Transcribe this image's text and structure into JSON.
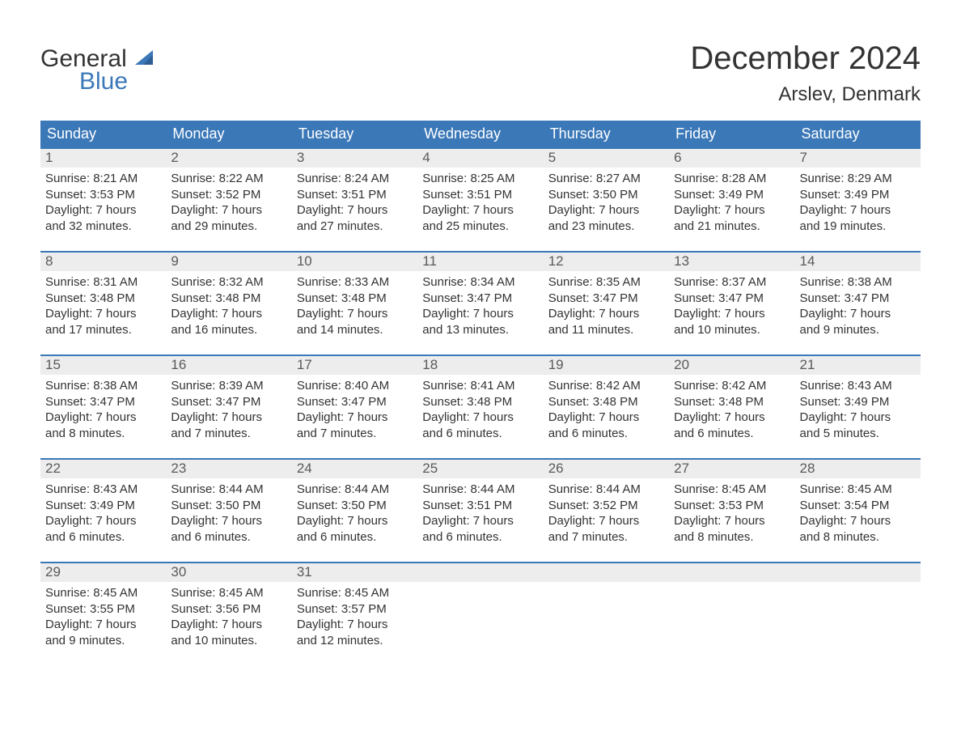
{
  "brand": {
    "name_part1": "General",
    "name_part2": "Blue",
    "text_color": "#333333",
    "accent_color": "#3b78b8"
  },
  "title": {
    "month_year": "December 2024",
    "location": "Arslev, Denmark",
    "month_fontsize": 40,
    "location_fontsize": 24
  },
  "colors": {
    "header_bg": "#3b78b8",
    "header_text": "#ffffff",
    "daynum_bg": "#ededed",
    "daynum_text": "#5a5a5a",
    "row_top_border": "#3b78b8",
    "body_text": "#333333",
    "page_bg": "#ffffff"
  },
  "typography": {
    "header_fontsize": 18,
    "daynum_fontsize": 17,
    "body_fontsize": 15,
    "font_family": "Arial"
  },
  "calendar": {
    "columns": [
      "Sunday",
      "Monday",
      "Tuesday",
      "Wednesday",
      "Thursday",
      "Friday",
      "Saturday"
    ],
    "weeks": [
      [
        {
          "day": "1",
          "sunrise": "Sunrise: 8:21 AM",
          "sunset": "Sunset: 3:53 PM",
          "dl1": "Daylight: 7 hours",
          "dl2": "and 32 minutes."
        },
        {
          "day": "2",
          "sunrise": "Sunrise: 8:22 AM",
          "sunset": "Sunset: 3:52 PM",
          "dl1": "Daylight: 7 hours",
          "dl2": "and 29 minutes."
        },
        {
          "day": "3",
          "sunrise": "Sunrise: 8:24 AM",
          "sunset": "Sunset: 3:51 PM",
          "dl1": "Daylight: 7 hours",
          "dl2": "and 27 minutes."
        },
        {
          "day": "4",
          "sunrise": "Sunrise: 8:25 AM",
          "sunset": "Sunset: 3:51 PM",
          "dl1": "Daylight: 7 hours",
          "dl2": "and 25 minutes."
        },
        {
          "day": "5",
          "sunrise": "Sunrise: 8:27 AM",
          "sunset": "Sunset: 3:50 PM",
          "dl1": "Daylight: 7 hours",
          "dl2": "and 23 minutes."
        },
        {
          "day": "6",
          "sunrise": "Sunrise: 8:28 AM",
          "sunset": "Sunset: 3:49 PM",
          "dl1": "Daylight: 7 hours",
          "dl2": "and 21 minutes."
        },
        {
          "day": "7",
          "sunrise": "Sunrise: 8:29 AM",
          "sunset": "Sunset: 3:49 PM",
          "dl1": "Daylight: 7 hours",
          "dl2": "and 19 minutes."
        }
      ],
      [
        {
          "day": "8",
          "sunrise": "Sunrise: 8:31 AM",
          "sunset": "Sunset: 3:48 PM",
          "dl1": "Daylight: 7 hours",
          "dl2": "and 17 minutes."
        },
        {
          "day": "9",
          "sunrise": "Sunrise: 8:32 AM",
          "sunset": "Sunset: 3:48 PM",
          "dl1": "Daylight: 7 hours",
          "dl2": "and 16 minutes."
        },
        {
          "day": "10",
          "sunrise": "Sunrise: 8:33 AM",
          "sunset": "Sunset: 3:48 PM",
          "dl1": "Daylight: 7 hours",
          "dl2": "and 14 minutes."
        },
        {
          "day": "11",
          "sunrise": "Sunrise: 8:34 AM",
          "sunset": "Sunset: 3:47 PM",
          "dl1": "Daylight: 7 hours",
          "dl2": "and 13 minutes."
        },
        {
          "day": "12",
          "sunrise": "Sunrise: 8:35 AM",
          "sunset": "Sunset: 3:47 PM",
          "dl1": "Daylight: 7 hours",
          "dl2": "and 11 minutes."
        },
        {
          "day": "13",
          "sunrise": "Sunrise: 8:37 AM",
          "sunset": "Sunset: 3:47 PM",
          "dl1": "Daylight: 7 hours",
          "dl2": "and 10 minutes."
        },
        {
          "day": "14",
          "sunrise": "Sunrise: 8:38 AM",
          "sunset": "Sunset: 3:47 PM",
          "dl1": "Daylight: 7 hours",
          "dl2": "and 9 minutes."
        }
      ],
      [
        {
          "day": "15",
          "sunrise": "Sunrise: 8:38 AM",
          "sunset": "Sunset: 3:47 PM",
          "dl1": "Daylight: 7 hours",
          "dl2": "and 8 minutes."
        },
        {
          "day": "16",
          "sunrise": "Sunrise: 8:39 AM",
          "sunset": "Sunset: 3:47 PM",
          "dl1": "Daylight: 7 hours",
          "dl2": "and 7 minutes."
        },
        {
          "day": "17",
          "sunrise": "Sunrise: 8:40 AM",
          "sunset": "Sunset: 3:47 PM",
          "dl1": "Daylight: 7 hours",
          "dl2": "and 7 minutes."
        },
        {
          "day": "18",
          "sunrise": "Sunrise: 8:41 AM",
          "sunset": "Sunset: 3:48 PM",
          "dl1": "Daylight: 7 hours",
          "dl2": "and 6 minutes."
        },
        {
          "day": "19",
          "sunrise": "Sunrise: 8:42 AM",
          "sunset": "Sunset: 3:48 PM",
          "dl1": "Daylight: 7 hours",
          "dl2": "and 6 minutes."
        },
        {
          "day": "20",
          "sunrise": "Sunrise: 8:42 AM",
          "sunset": "Sunset: 3:48 PM",
          "dl1": "Daylight: 7 hours",
          "dl2": "and 6 minutes."
        },
        {
          "day": "21",
          "sunrise": "Sunrise: 8:43 AM",
          "sunset": "Sunset: 3:49 PM",
          "dl1": "Daylight: 7 hours",
          "dl2": "and 5 minutes."
        }
      ],
      [
        {
          "day": "22",
          "sunrise": "Sunrise: 8:43 AM",
          "sunset": "Sunset: 3:49 PM",
          "dl1": "Daylight: 7 hours",
          "dl2": "and 6 minutes."
        },
        {
          "day": "23",
          "sunrise": "Sunrise: 8:44 AM",
          "sunset": "Sunset: 3:50 PM",
          "dl1": "Daylight: 7 hours",
          "dl2": "and 6 minutes."
        },
        {
          "day": "24",
          "sunrise": "Sunrise: 8:44 AM",
          "sunset": "Sunset: 3:50 PM",
          "dl1": "Daylight: 7 hours",
          "dl2": "and 6 minutes."
        },
        {
          "day": "25",
          "sunrise": "Sunrise: 8:44 AM",
          "sunset": "Sunset: 3:51 PM",
          "dl1": "Daylight: 7 hours",
          "dl2": "and 6 minutes."
        },
        {
          "day": "26",
          "sunrise": "Sunrise: 8:44 AM",
          "sunset": "Sunset: 3:52 PM",
          "dl1": "Daylight: 7 hours",
          "dl2": "and 7 minutes."
        },
        {
          "day": "27",
          "sunrise": "Sunrise: 8:45 AM",
          "sunset": "Sunset: 3:53 PM",
          "dl1": "Daylight: 7 hours",
          "dl2": "and 8 minutes."
        },
        {
          "day": "28",
          "sunrise": "Sunrise: 8:45 AM",
          "sunset": "Sunset: 3:54 PM",
          "dl1": "Daylight: 7 hours",
          "dl2": "and 8 minutes."
        }
      ],
      [
        {
          "day": "29",
          "sunrise": "Sunrise: 8:45 AM",
          "sunset": "Sunset: 3:55 PM",
          "dl1": "Daylight: 7 hours",
          "dl2": "and 9 minutes."
        },
        {
          "day": "30",
          "sunrise": "Sunrise: 8:45 AM",
          "sunset": "Sunset: 3:56 PM",
          "dl1": "Daylight: 7 hours",
          "dl2": "and 10 minutes."
        },
        {
          "day": "31",
          "sunrise": "Sunrise: 8:45 AM",
          "sunset": "Sunset: 3:57 PM",
          "dl1": "Daylight: 7 hours",
          "dl2": "and 12 minutes."
        },
        null,
        null,
        null,
        null
      ]
    ]
  }
}
